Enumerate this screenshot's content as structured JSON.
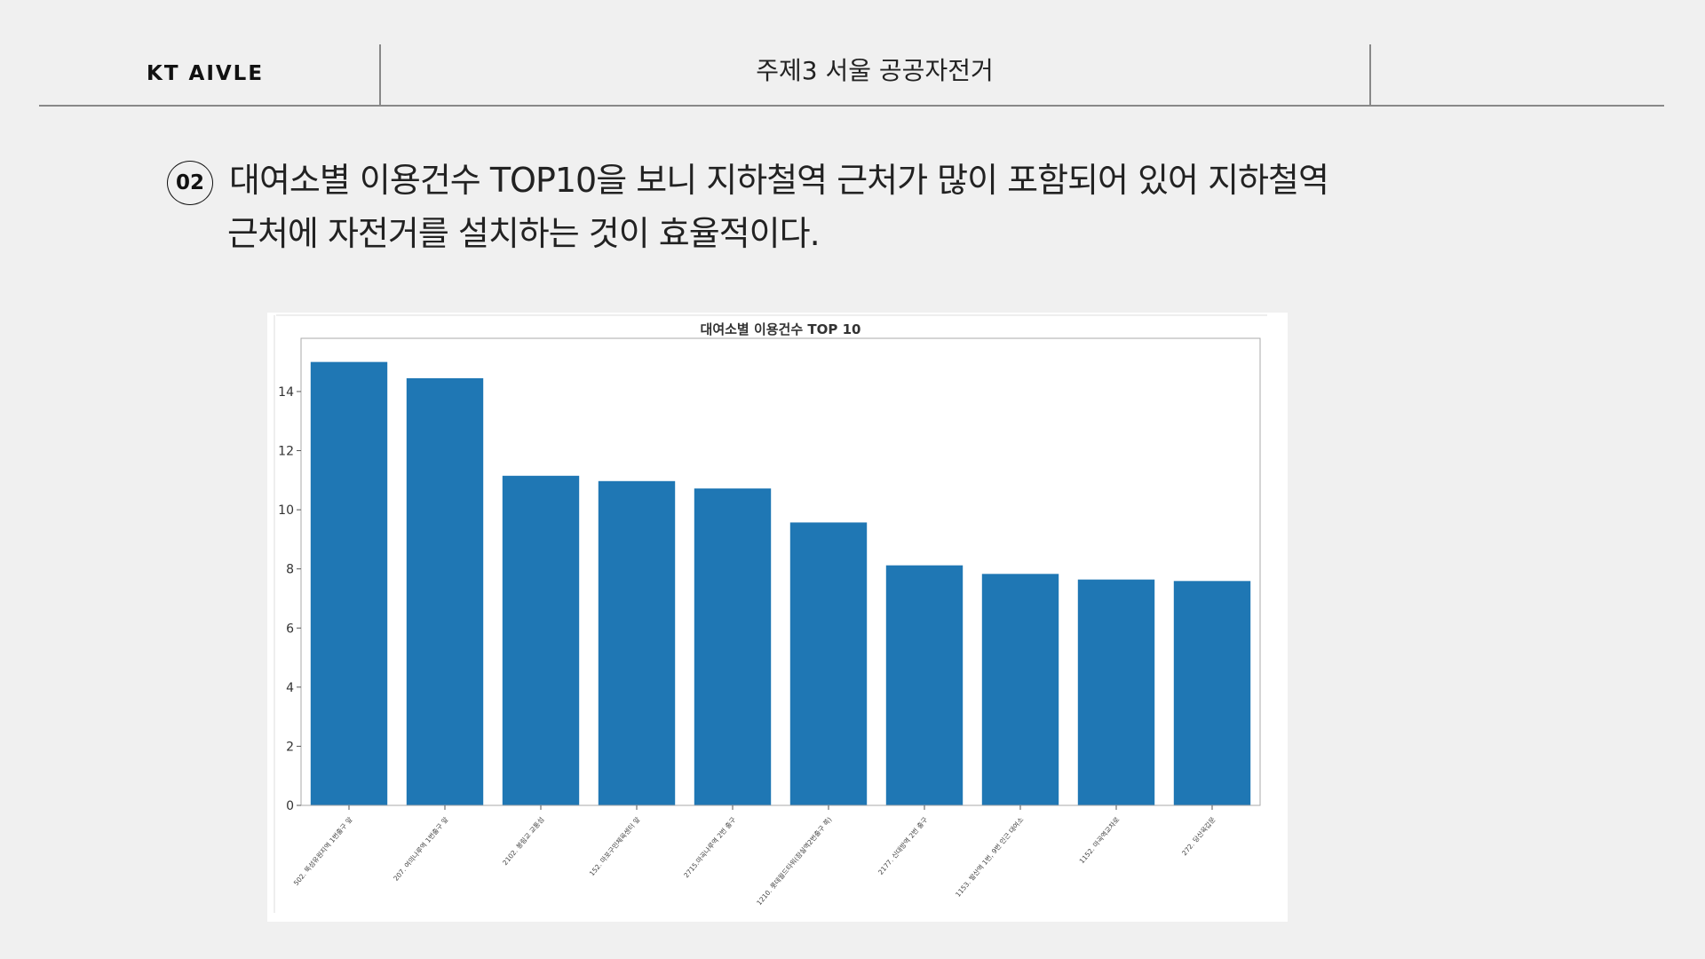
{
  "header": {
    "brand": "KT AIVLE",
    "topic": "주제3 서울 공공자전거"
  },
  "statement": {
    "number": "02",
    "line1": "대여소별 이용건수 TOP10을 보니 지하철역 근처가 많이 포함되어 있어 지하철역",
    "line2": "근처에 자전거를 설치하는 것이 효율적이다."
  },
  "chart_data": {
    "type": "bar",
    "title": "대여소별 이용건수 TOP 10",
    "xlabel": "",
    "ylabel": "",
    "ylim": [
      0,
      15.8
    ],
    "yticks": [
      0,
      2,
      4,
      6,
      8,
      10,
      12,
      14
    ],
    "grid": false,
    "categories": [
      "502. 뚝섬유원지역 1번출구 앞",
      "207. 여의나루역 1번출구 앞",
      "2102. 봉림교 교통섬",
      "152. 마포구민체육센터 앞",
      "2715.마곡나루역 2번 출구",
      "1210. 롯데월드타워(잠실역2번출구 쪽)",
      "2177. 신대방역 2번 출구",
      "1153. 발산역 1번, 9번 인근 대여소",
      "1152. 마곡역교차로",
      "272. 당산육갑문"
    ],
    "values": [
      15.0,
      14.45,
      11.15,
      10.97,
      10.72,
      9.57,
      8.12,
      7.83,
      7.64,
      7.59
    ],
    "colors": {
      "bar": "#1f77b4",
      "axis": "#aaaaaa",
      "text": "#333333"
    }
  }
}
